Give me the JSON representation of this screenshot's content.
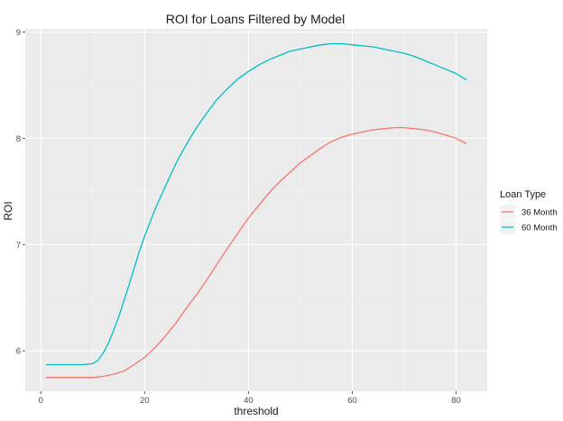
{
  "chart_data": {
    "type": "line",
    "title": "ROI for Loans Filtered by Model",
    "xlabel": "threshold",
    "ylabel": "ROI",
    "xlim": [
      -3,
      86
    ],
    "ylim": [
      5.62,
      9.03
    ],
    "x_ticks": [
      0,
      20,
      40,
      60,
      80
    ],
    "y_ticks": [
      6,
      7,
      8,
      9
    ],
    "grid": true,
    "legend": {
      "title": "Loan Type",
      "position": "right"
    },
    "series": [
      {
        "name": "36 Month",
        "color": "#F8766D",
        "points": [
          [
            1,
            5.75
          ],
          [
            5,
            5.75
          ],
          [
            10,
            5.75
          ],
          [
            12,
            5.76
          ],
          [
            14,
            5.78
          ],
          [
            16,
            5.81
          ],
          [
            18,
            5.87
          ],
          [
            20,
            5.94
          ],
          [
            22,
            6.03
          ],
          [
            24,
            6.14
          ],
          [
            26,
            6.26
          ],
          [
            28,
            6.4
          ],
          [
            30,
            6.53
          ],
          [
            32,
            6.67
          ],
          [
            34,
            6.82
          ],
          [
            36,
            6.97
          ],
          [
            38,
            7.11
          ],
          [
            40,
            7.25
          ],
          [
            42,
            7.37
          ],
          [
            44,
            7.49
          ],
          [
            46,
            7.59
          ],
          [
            48,
            7.68
          ],
          [
            50,
            7.77
          ],
          [
            52,
            7.84
          ],
          [
            54,
            7.91
          ],
          [
            56,
            7.97
          ],
          [
            58,
            8.01
          ],
          [
            60,
            8.04
          ],
          [
            62,
            8.06
          ],
          [
            64,
            8.08
          ],
          [
            66,
            8.09
          ],
          [
            68,
            8.1
          ],
          [
            70,
            8.1
          ],
          [
            72,
            8.09
          ],
          [
            74,
            8.08
          ],
          [
            76,
            8.06
          ],
          [
            78,
            8.03
          ],
          [
            80,
            8.0
          ],
          [
            82,
            7.95
          ]
        ]
      },
      {
        "name": "60 Month",
        "color": "#00BFC4",
        "points": [
          [
            1,
            5.87
          ],
          [
            5,
            5.87
          ],
          [
            8,
            5.87
          ],
          [
            10,
            5.88
          ],
          [
            11,
            5.91
          ],
          [
            12,
            5.98
          ],
          [
            13,
            6.07
          ],
          [
            14,
            6.19
          ],
          [
            15,
            6.32
          ],
          [
            16,
            6.47
          ],
          [
            17,
            6.62
          ],
          [
            18,
            6.78
          ],
          [
            19,
            6.94
          ],
          [
            20,
            7.08
          ],
          [
            22,
            7.33
          ],
          [
            24,
            7.55
          ],
          [
            26,
            7.76
          ],
          [
            28,
            7.94
          ],
          [
            30,
            8.1
          ],
          [
            32,
            8.24
          ],
          [
            34,
            8.37
          ],
          [
            36,
            8.47
          ],
          [
            38,
            8.56
          ],
          [
            40,
            8.63
          ],
          [
            42,
            8.69
          ],
          [
            44,
            8.74
          ],
          [
            46,
            8.78
          ],
          [
            48,
            8.82
          ],
          [
            50,
            8.84
          ],
          [
            52,
            8.86
          ],
          [
            54,
            8.88
          ],
          [
            56,
            8.89
          ],
          [
            58,
            8.89
          ],
          [
            60,
            8.88
          ],
          [
            62,
            8.87
          ],
          [
            64,
            8.86
          ],
          [
            66,
            8.84
          ],
          [
            68,
            8.82
          ],
          [
            70,
            8.8
          ],
          [
            72,
            8.77
          ],
          [
            74,
            8.73
          ],
          [
            76,
            8.69
          ],
          [
            78,
            8.65
          ],
          [
            80,
            8.61
          ],
          [
            82,
            8.55
          ]
        ]
      }
    ]
  }
}
